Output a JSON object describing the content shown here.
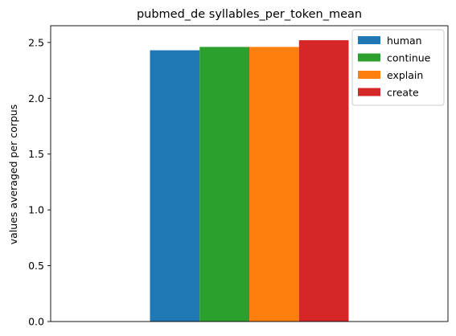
{
  "chart_data": {
    "type": "bar",
    "title": "pubmed_de syllables_per_token_mean",
    "xlabel": "",
    "ylabel": "values averaged per corpus",
    "categories": [
      ""
    ],
    "ylim": [
      0,
      2.65
    ],
    "yticks": [
      0.0,
      0.5,
      1.0,
      1.5,
      2.0,
      2.5
    ],
    "ytick_labels": [
      "0.0",
      "0.5",
      "1.0",
      "1.5",
      "2.0",
      "2.5"
    ],
    "grid": false,
    "legend_position": "top-right",
    "series": [
      {
        "name": "human",
        "values": [
          2.43
        ],
        "color": "#1f77b4"
      },
      {
        "name": "continue",
        "values": [
          2.46
        ],
        "color": "#2ca02c"
      },
      {
        "name": "explain",
        "values": [
          2.46
        ],
        "color": "#ff7f0e"
      },
      {
        "name": "create",
        "values": [
          2.52
        ],
        "color": "#d62728"
      }
    ]
  }
}
